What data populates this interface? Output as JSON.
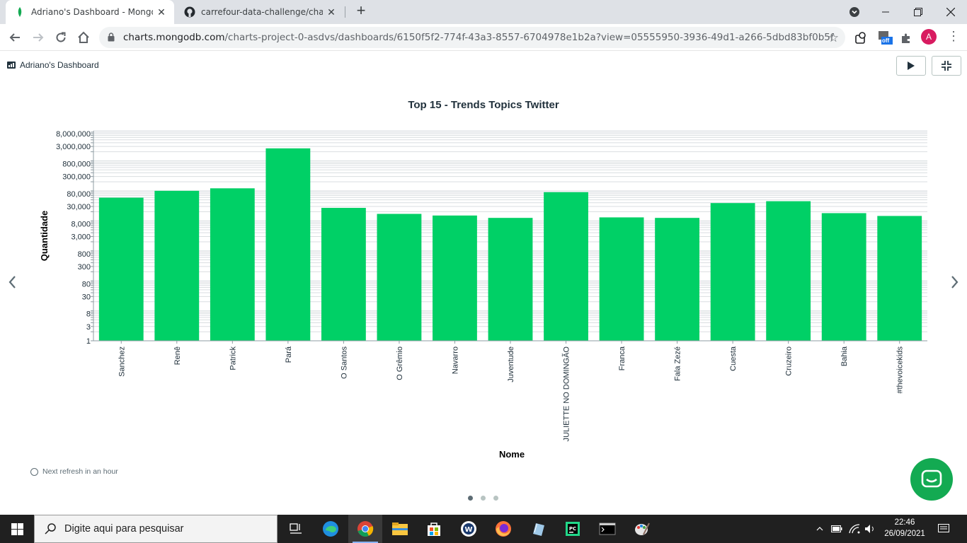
{
  "browser": {
    "tabs": [
      {
        "title": "Adriano's Dashboard - MongoDB",
        "favicon": "mongodb-leaf-icon",
        "active": true
      },
      {
        "title": "carrefour-data-challenge/charts a",
        "favicon": "github-icon",
        "active": false
      }
    ],
    "new_tab_label": "+",
    "url_host": "charts.mongodb.com",
    "url_path": "/charts-project-0-asdvs/dashboards/6150f5f2-774f-43a3-8557-6704978e1b2a?view=05555950-3936-49d1-a266-5dbd83bf0b5f",
    "avatar_letter": "A",
    "ext_badge": "off"
  },
  "dashboard": {
    "title": "Adriano's Dashboard",
    "refresh_text": "Next refresh in an hour",
    "pages": 3,
    "current_page": 0
  },
  "chart_data": {
    "type": "bar",
    "title": "Top 15 - Trends Topics Twitter",
    "xlabel": "Nome",
    "ylabel": "Quantidade",
    "yscale": "log",
    "ylim": [
      1,
      10000000
    ],
    "ytick_labels": [
      "1",
      "3",
      "8",
      "30",
      "80",
      "300",
      "800",
      "3,000",
      "8,000",
      "30,000",
      "80,000",
      "300,000",
      "800,000",
      "3,000,000",
      "8,000,000"
    ],
    "ytick_values": [
      1,
      3,
      8,
      30,
      80,
      300,
      800,
      3000,
      8000,
      30000,
      80000,
      300000,
      800000,
      3000000,
      8000000
    ],
    "categories": [
      "Sanchez",
      "Renê",
      "Patrick",
      "Pará",
      "O Santos",
      "O Grêmio",
      "Navarro",
      "Juventude",
      "JULIETTE NO DOMINGÃO",
      "Franca",
      "Fala Zezé",
      "Cuesta",
      "Cruzeiro",
      "Bahia",
      "#thevoicekids"
    ],
    "values": [
      59000,
      100000,
      121000,
      2600000,
      27000,
      17000,
      15000,
      12500,
      90000,
      13000,
      12500,
      39000,
      45000,
      18000,
      14500
    ],
    "bar_color": "#00d066",
    "grid": true,
    "legend": "none"
  },
  "taskbar": {
    "search_placeholder": "Digite aqui para pesquisar",
    "time": "22:46",
    "date": "26/09/2021"
  }
}
